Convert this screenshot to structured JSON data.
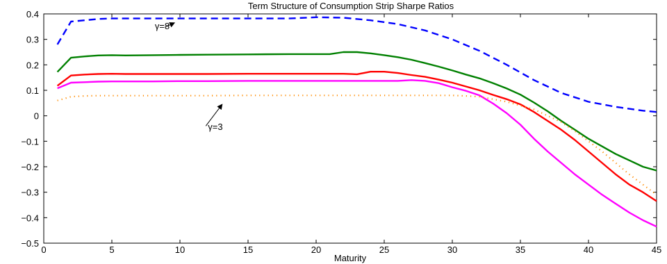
{
  "chart_data": {
    "type": "line",
    "title": "Term Structure of Consumption Strip Sharpe Ratios",
    "xlabel": "Maturity",
    "ylabel": "",
    "xlim": [
      0,
      45
    ],
    "ylim": [
      -0.5,
      0.4
    ],
    "xticks": [
      0,
      5,
      10,
      15,
      20,
      25,
      30,
      35,
      40,
      45
    ],
    "yticks": [
      -0.5,
      -0.4,
      -0.3,
      -0.2,
      -0.1,
      0,
      0.1,
      0.2,
      0.3,
      0.4
    ],
    "xtick_labels": [
      "0",
      "5",
      "10",
      "15",
      "20",
      "25",
      "30",
      "35",
      "40",
      "45"
    ],
    "ytick_labels": [
      "−0.5",
      "−0.4",
      "−0.3",
      "−0.2",
      "−0.1",
      "0",
      "0.1",
      "0.2",
      "0.3",
      "0.4"
    ],
    "grid": false,
    "series": [
      {
        "color": "#0000ff",
        "style": "dashed",
        "x": [
          1,
          2,
          3,
          4,
          5,
          6,
          8,
          10,
          12,
          15,
          18,
          20,
          22,
          24,
          26,
          28,
          30,
          32,
          34,
          36,
          38,
          40,
          42,
          44,
          45
        ],
        "y": [
          0.28,
          0.37,
          0.375,
          0.38,
          0.382,
          0.382,
          0.382,
          0.382,
          0.382,
          0.382,
          0.382,
          0.387,
          0.385,
          0.375,
          0.36,
          0.335,
          0.3,
          0.255,
          0.2,
          0.14,
          0.09,
          0.055,
          0.035,
          0.02,
          0.015
        ]
      },
      {
        "color": "#008000",
        "style": "solid",
        "x": [
          1,
          2,
          3,
          4,
          5,
          6,
          8,
          10,
          12,
          15,
          18,
          20,
          21,
          22,
          23,
          24,
          25,
          26,
          27,
          28,
          29,
          30,
          31,
          32,
          33,
          34,
          35,
          36,
          37,
          38,
          39,
          40,
          41,
          42,
          43,
          44,
          45
        ],
        "y": [
          0.172,
          0.228,
          0.233,
          0.237,
          0.238,
          0.237,
          0.238,
          0.239,
          0.24,
          0.241,
          0.242,
          0.242,
          0.242,
          0.25,
          0.25,
          0.245,
          0.238,
          0.23,
          0.22,
          0.207,
          0.193,
          0.178,
          0.162,
          0.147,
          0.128,
          0.107,
          0.083,
          0.052,
          0.018,
          -0.02,
          -0.055,
          -0.09,
          -0.12,
          -0.15,
          -0.175,
          -0.2,
          -0.215
        ]
      },
      {
        "color": "#ff0000",
        "style": "solid",
        "x": [
          1,
          2,
          3,
          4,
          5,
          6,
          8,
          10,
          12,
          15,
          18,
          20,
          22,
          23,
          24,
          25,
          26,
          27,
          28,
          29,
          30,
          31,
          32,
          33,
          34,
          35,
          36,
          37,
          38,
          39,
          40,
          41,
          42,
          43,
          44,
          45
        ],
        "y": [
          0.118,
          0.158,
          0.162,
          0.164,
          0.165,
          0.164,
          0.164,
          0.164,
          0.164,
          0.165,
          0.165,
          0.165,
          0.165,
          0.163,
          0.173,
          0.173,
          0.168,
          0.16,
          0.153,
          0.142,
          0.13,
          0.115,
          0.1,
          0.082,
          0.065,
          0.045,
          0.015,
          -0.02,
          -0.055,
          -0.095,
          -0.14,
          -0.185,
          -0.23,
          -0.27,
          -0.3,
          -0.335
        ]
      },
      {
        "color": "#ff00ff",
        "style": "solid",
        "x": [
          1,
          2,
          3,
          4,
          5,
          6,
          8,
          10,
          12,
          15,
          18,
          20,
          22,
          24,
          26,
          27,
          28,
          29,
          30,
          31,
          32,
          33,
          34,
          35,
          36,
          37,
          38,
          39,
          40,
          41,
          42,
          43,
          44,
          45
        ],
        "y": [
          0.108,
          0.13,
          0.132,
          0.134,
          0.135,
          0.135,
          0.135,
          0.136,
          0.136,
          0.137,
          0.137,
          0.137,
          0.137,
          0.137,
          0.137,
          0.14,
          0.137,
          0.128,
          0.112,
          0.098,
          0.08,
          0.048,
          0.01,
          -0.035,
          -0.09,
          -0.14,
          -0.185,
          -0.23,
          -0.27,
          -0.31,
          -0.345,
          -0.38,
          -0.41,
          -0.435
        ]
      },
      {
        "color": "#ff8c00",
        "style": "dotted",
        "x": [
          1,
          2,
          3,
          4,
          5,
          6,
          8,
          10,
          12,
          15,
          18,
          20,
          22,
          24,
          26,
          28,
          30,
          31,
          32,
          33,
          34,
          35,
          36,
          37,
          38,
          39,
          40,
          41,
          42,
          43,
          44,
          45
        ],
        "y": [
          0.06,
          0.075,
          0.078,
          0.079,
          0.079,
          0.079,
          0.079,
          0.079,
          0.079,
          0.08,
          0.08,
          0.08,
          0.08,
          0.08,
          0.08,
          0.08,
          0.08,
          0.078,
          0.075,
          0.065,
          0.055,
          0.04,
          0.025,
          0.0,
          -0.025,
          -0.06,
          -0.1,
          -0.14,
          -0.185,
          -0.23,
          -0.27,
          -0.31
        ]
      }
    ],
    "annotations": [
      {
        "text": "γ=8",
        "x": 8.7,
        "y": 0.34,
        "arrow_from": [
          9.0,
          0.35
        ],
        "arrow_to": [
          9.6,
          0.365
        ]
      },
      {
        "text": "γ=3",
        "x": 12.6,
        "y": -0.055,
        "arrow_from": [
          11.9,
          -0.04
        ],
        "arrow_to": [
          13.1,
          0.045
        ]
      }
    ]
  }
}
